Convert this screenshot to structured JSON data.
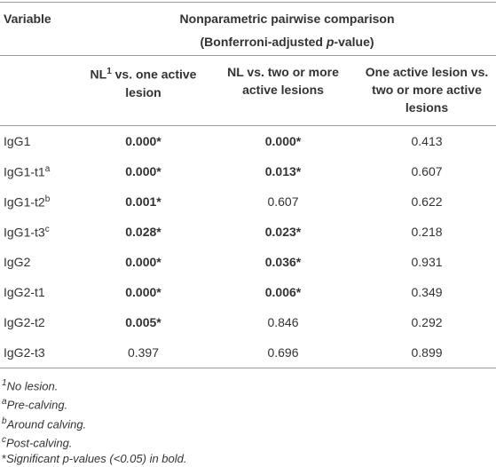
{
  "header": {
    "variable": "Variable",
    "title": "Nonparametric pairwise comparison",
    "subtitle": {
      "before": "(Bonferroni-adjusted ",
      "italic": "p",
      "after": "-value)"
    }
  },
  "columns": [
    {
      "text": "NL",
      "sup": "1",
      "rest": " vs. one active lesion"
    },
    {
      "text": "NL vs. two or more active lesions"
    },
    {
      "text": "One active lesion vs. two or more active lesions"
    }
  ],
  "table": {
    "rows": [
      {
        "variable": "IgG1",
        "values": [
          "0.000*",
          "0.000*",
          "0.413"
        ],
        "bold": [
          true,
          true,
          false
        ]
      },
      {
        "variable": "IgG1-t1",
        "sup": "a",
        "values": [
          "0.000*",
          "0.013*",
          "0.607"
        ],
        "bold": [
          true,
          true,
          false
        ]
      },
      {
        "variable": "IgG1-t2",
        "sup": "b",
        "values": [
          "0.001*",
          "0.607",
          "0.622"
        ],
        "bold": [
          true,
          false,
          false
        ]
      },
      {
        "variable": "IgG1-t3",
        "sup": "c",
        "values": [
          "0.028*",
          "0.023*",
          "0.218"
        ],
        "bold": [
          true,
          true,
          false
        ]
      },
      {
        "variable": "IgG2",
        "values": [
          "0.000*",
          "0.036*",
          "0.931"
        ],
        "bold": [
          true,
          true,
          false
        ]
      },
      {
        "variable": "IgG2-t1",
        "values": [
          "0.000*",
          "0.006*",
          "0.349"
        ],
        "bold": [
          true,
          true,
          false
        ]
      },
      {
        "variable": "IgG2-t2",
        "values": [
          "0.005*",
          "0.846",
          "0.292"
        ],
        "bold": [
          true,
          false,
          false
        ]
      },
      {
        "variable": "IgG2-t3",
        "values": [
          "0.397",
          "0.696",
          "0.899"
        ],
        "bold": [
          false,
          false,
          false
        ]
      }
    ]
  },
  "footnotes": [
    {
      "marker": "1",
      "text": "No lesion."
    },
    {
      "marker": "a",
      "text": "Pre-calving."
    },
    {
      "marker": "b",
      "text": "Around calving."
    },
    {
      "marker": "c",
      "text": "Post-calving."
    },
    {
      "marker": "*",
      "text": "Significant p-values (<0.05) in bold."
    }
  ]
}
